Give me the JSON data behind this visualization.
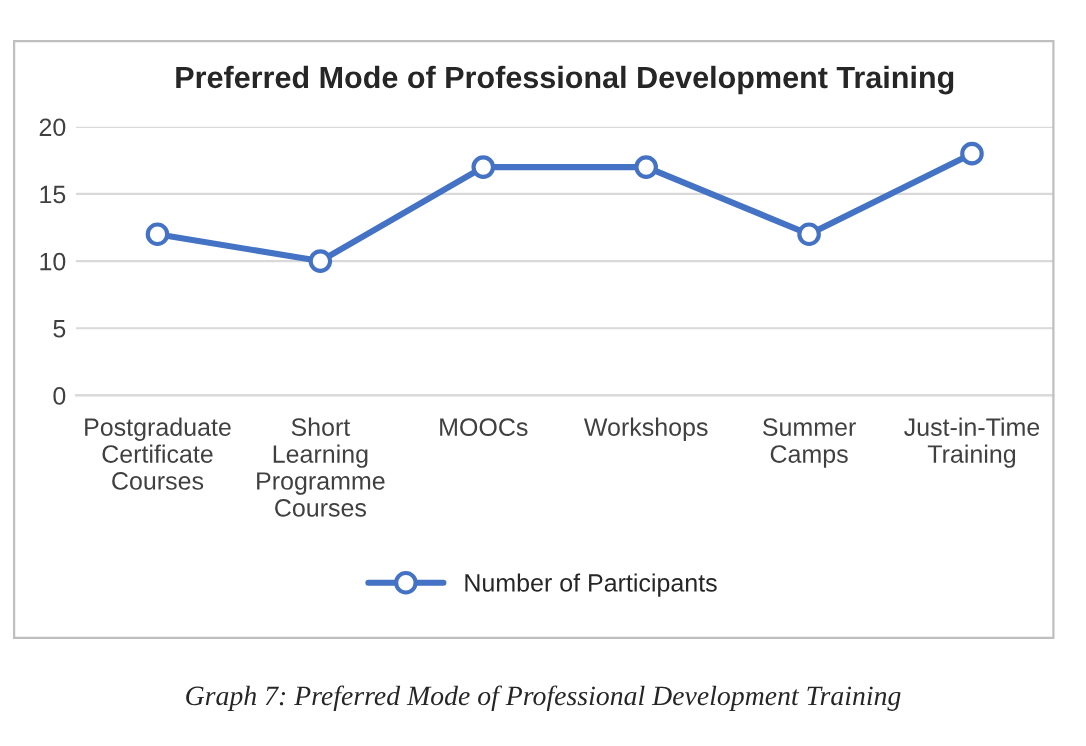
{
  "chart_data": {
    "type": "line",
    "title": "Preferred Mode of Professional Development Training",
    "categories": [
      "Postgraduate\nCertificate\nCourses",
      "Short\nLearning\nProgramme\nCourses",
      "MOOCs",
      "Workshops",
      "Summer\nCamps",
      "Just-in-Time\nTraining"
    ],
    "series": [
      {
        "name": "Number of Participants",
        "color": "#4472c4",
        "values": [
          12,
          10,
          17,
          17,
          12,
          18
        ]
      }
    ],
    "ylim": [
      0,
      20
    ],
    "yticks": [
      0,
      5,
      10,
      15,
      20
    ],
    "grid": "y",
    "legend": "bottom",
    "marker": "circle",
    "line_style": "solid",
    "annotations": [
      "Graph 7: Preferred Mode of Professional Development Training"
    ]
  }
}
